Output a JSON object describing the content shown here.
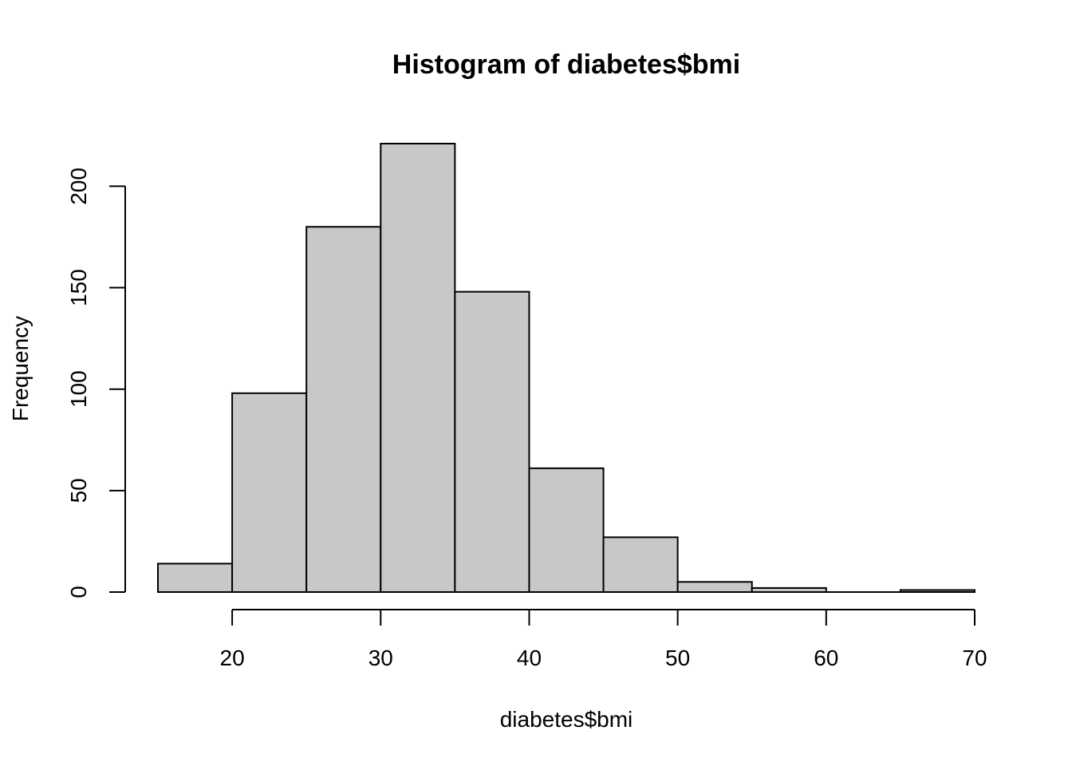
{
  "chart_data": {
    "type": "bar",
    "title": "Histogram of diabetes$bmi",
    "xlabel": "diabetes$bmi",
    "ylabel": "Frequency",
    "bins": [
      {
        "start": 15,
        "end": 20,
        "count": 14
      },
      {
        "start": 20,
        "end": 25,
        "count": 98
      },
      {
        "start": 25,
        "end": 30,
        "count": 180
      },
      {
        "start": 30,
        "end": 35,
        "count": 221
      },
      {
        "start": 35,
        "end": 40,
        "count": 148
      },
      {
        "start": 40,
        "end": 45,
        "count": 61
      },
      {
        "start": 45,
        "end": 50,
        "count": 27
      },
      {
        "start": 50,
        "end": 55,
        "count": 5
      },
      {
        "start": 55,
        "end": 60,
        "count": 2
      },
      {
        "start": 60,
        "end": 65,
        "count": 0
      },
      {
        "start": 65,
        "end": 70,
        "count": 1
      }
    ],
    "xticks": [
      20,
      30,
      40,
      50,
      60,
      70
    ],
    "yticks": [
      0,
      50,
      100,
      150,
      200
    ],
    "xlim": [
      15,
      70
    ],
    "ylim": [
      0,
      221
    ],
    "grid": false,
    "colors": {
      "bar_fill": "#c8c8c8",
      "bar_stroke": "#000000"
    }
  }
}
